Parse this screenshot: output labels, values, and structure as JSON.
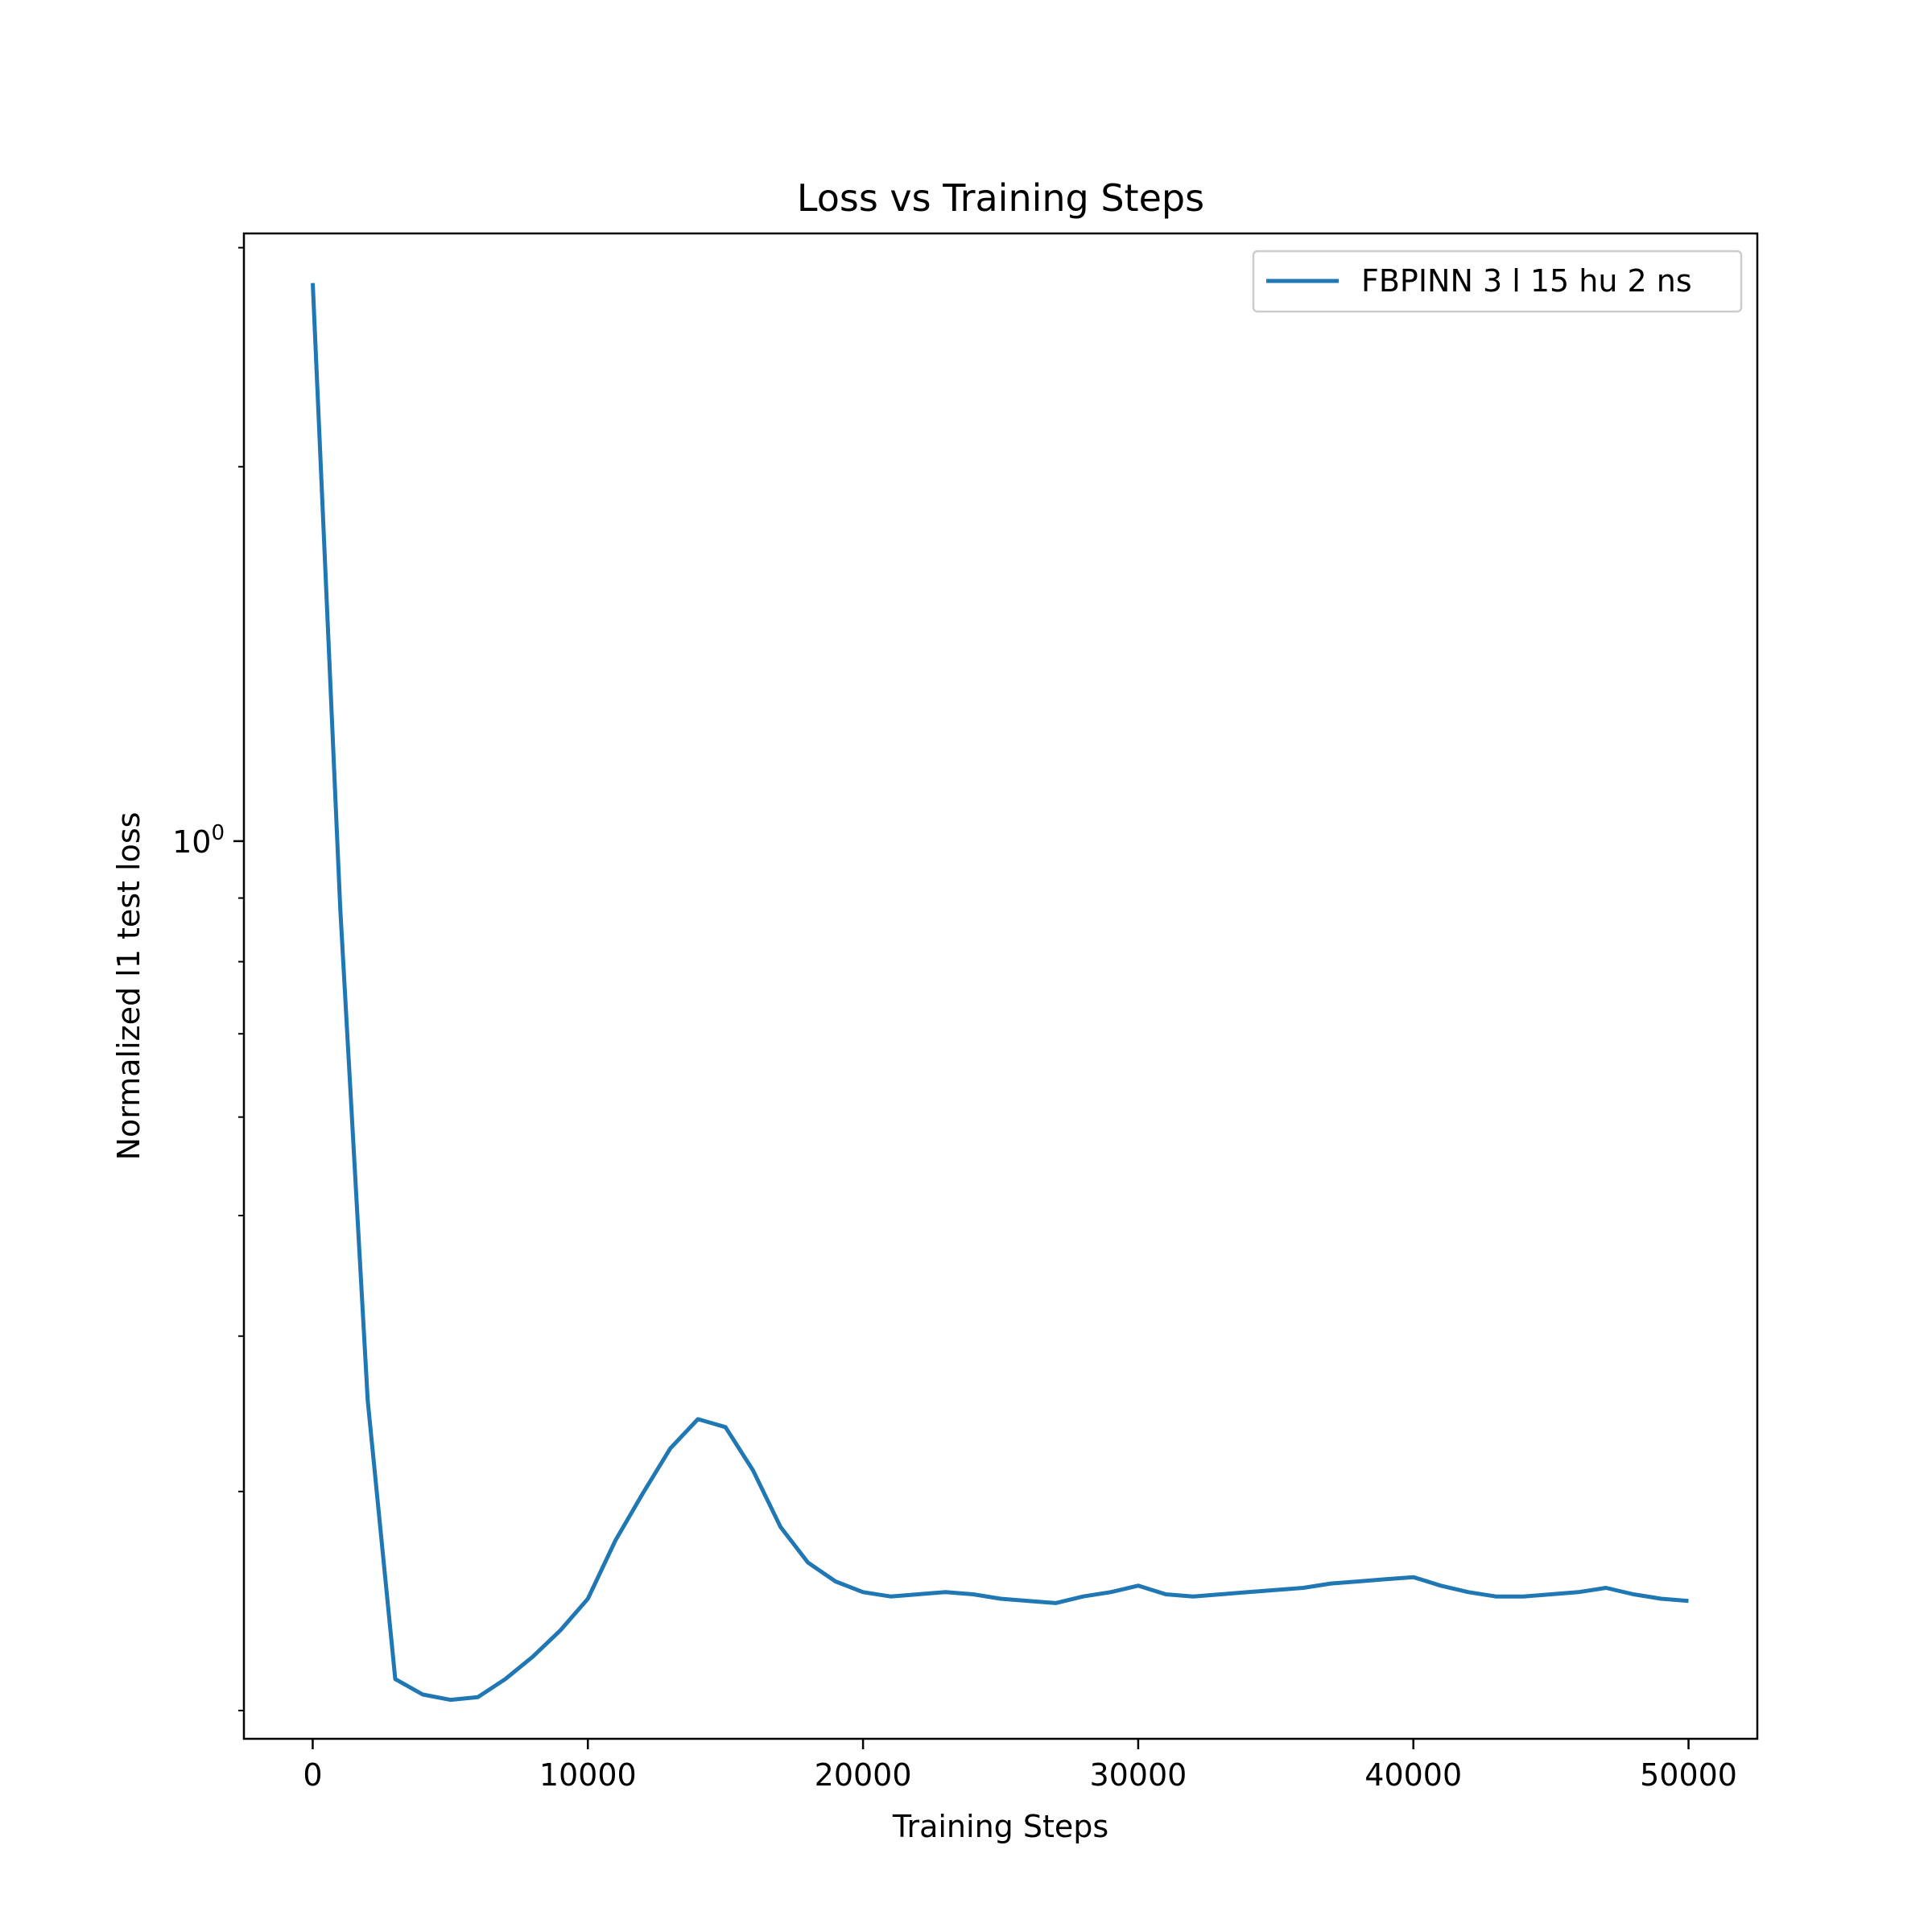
{
  "chart_data": {
    "type": "line",
    "title": "Loss vs Training Steps",
    "xlabel": "Training Steps",
    "ylabel": "Normalized l1 test loss",
    "y_scale": "log",
    "xlim": [
      -2500,
      52500
    ],
    "ylim": [
      0.1898,
      3.08
    ],
    "x_ticks": [
      0,
      10000,
      20000,
      30000,
      40000,
      50000
    ],
    "x_tick_labels": [
      "0",
      "10000",
      "20000",
      "30000",
      "40000",
      "50000"
    ],
    "y_major_ticks": [
      1.0
    ],
    "y_major_tick_labels": [
      {
        "base": "10",
        "exp": "0"
      }
    ],
    "y_minor_ticks": [
      0.2,
      0.3,
      0.4,
      0.5,
      0.6,
      0.7,
      0.8,
      0.9,
      2.0,
      3.0
    ],
    "grid": false,
    "legend_position": "top-right",
    "colors": {
      "series": "#1f77b4",
      "axes": "#000000",
      "legend_border": "#cccccc"
    },
    "series": [
      {
        "name": "FBPINN 3 l 15 hu 2 ns",
        "x": [
          0,
          1000,
          2000,
          3000,
          4000,
          5000,
          6000,
          7000,
          8000,
          9000,
          10000,
          11000,
          12000,
          13000,
          14000,
          15000,
          16000,
          17000,
          18000,
          19000,
          20000,
          21000,
          22000,
          23000,
          24000,
          25000,
          26000,
          27000,
          28000,
          29000,
          30000,
          31000,
          32000,
          33000,
          34000,
          35000,
          36000,
          37000,
          38000,
          39000,
          40000,
          41000,
          42000,
          43000,
          44000,
          45000,
          46000,
          47000,
          48000,
          49000,
          50000
        ],
        "y": [
          2.81,
          0.885,
          0.355,
          0.212,
          0.206,
          0.204,
          0.205,
          0.212,
          0.221,
          0.232,
          0.246,
          0.274,
          0.299,
          0.325,
          0.343,
          0.338,
          0.312,
          0.281,
          0.263,
          0.254,
          0.249,
          0.247,
          0.248,
          0.249,
          0.248,
          0.246,
          0.245,
          0.244,
          0.247,
          0.249,
          0.252,
          0.248,
          0.247,
          0.248,
          0.249,
          0.25,
          0.251,
          0.253,
          0.254,
          0.255,
          0.256,
          0.252,
          0.249,
          0.247,
          0.247,
          0.248,
          0.249,
          0.251,
          0.248,
          0.246,
          0.245
        ]
      }
    ]
  }
}
